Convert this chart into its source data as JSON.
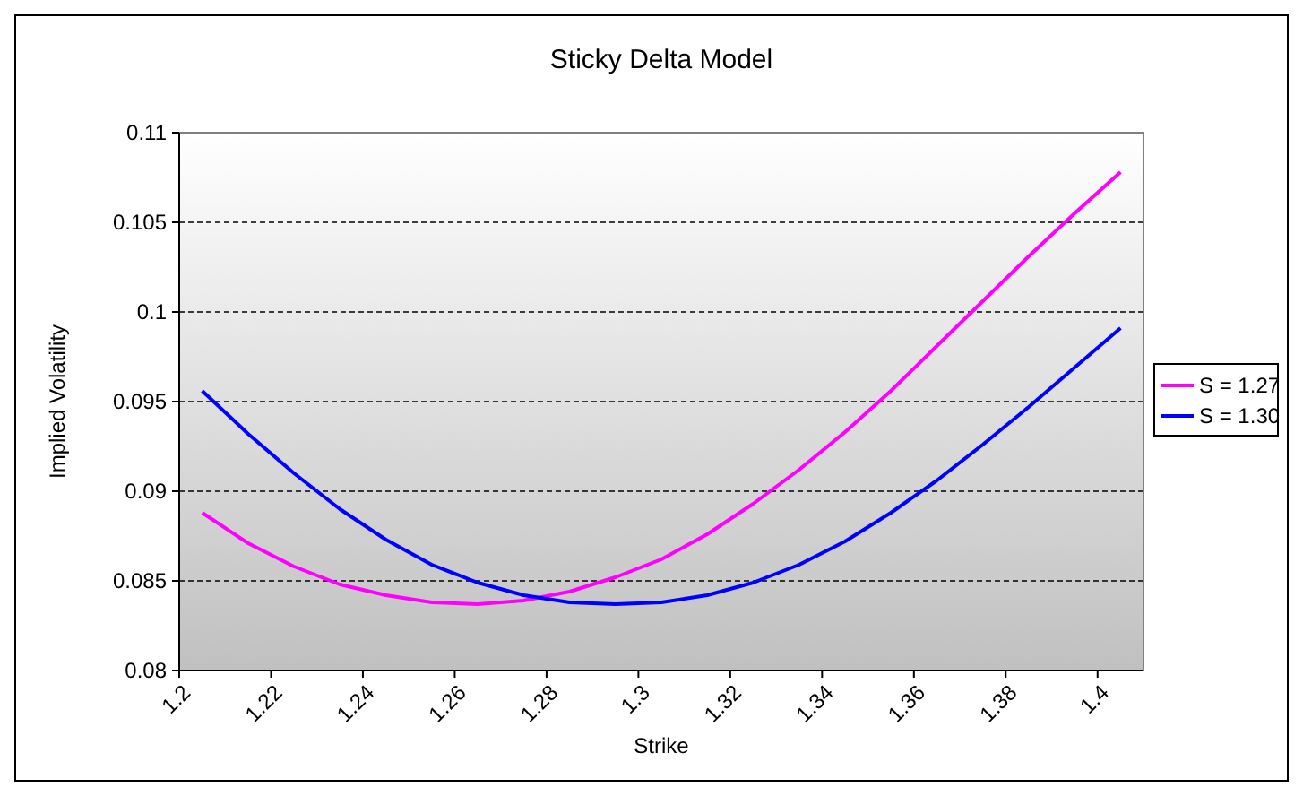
{
  "chart_data": {
    "type": "line",
    "title": "Sticky Delta Model",
    "xlabel": "Strike",
    "ylabel": "Implied Volatility",
    "x": [
      1.205,
      1.215,
      1.225,
      1.235,
      1.245,
      1.255,
      1.265,
      1.275,
      1.285,
      1.295,
      1.305,
      1.315,
      1.325,
      1.335,
      1.345,
      1.355,
      1.365,
      1.375,
      1.385,
      1.395,
      1.405
    ],
    "series": [
      {
        "name": "S = 1.27",
        "color": "#ff00ff",
        "values": [
          0.0888,
          0.0871,
          0.0858,
          0.0848,
          0.0842,
          0.0838,
          0.0837,
          0.0839,
          0.0844,
          0.0852,
          0.0862,
          0.0876,
          0.0893,
          0.0912,
          0.0933,
          0.0956,
          0.0981,
          0.1006,
          0.1031,
          0.1055,
          0.1078
        ]
      },
      {
        "name": "S = 1.30",
        "color": "#0000ff",
        "values": [
          0.0956,
          0.0932,
          0.091,
          0.089,
          0.0873,
          0.0859,
          0.0849,
          0.0842,
          0.0838,
          0.0837,
          0.0838,
          0.0842,
          0.0849,
          0.0859,
          0.0872,
          0.0888,
          0.0906,
          0.0926,
          0.0947,
          0.0969,
          0.0991
        ]
      }
    ],
    "xlim": [
      1.2,
      1.41
    ],
    "xticks": [
      1.2,
      1.22,
      1.24,
      1.26,
      1.28,
      1.3,
      1.32,
      1.34,
      1.36,
      1.38,
      1.4
    ],
    "ylim": [
      0.08,
      0.11
    ],
    "yticks": [
      0.08,
      0.085,
      0.09,
      0.095,
      0.1,
      0.105,
      0.11
    ],
    "grid": "y",
    "legend": "right",
    "marker": "none",
    "line_style": "solid"
  }
}
